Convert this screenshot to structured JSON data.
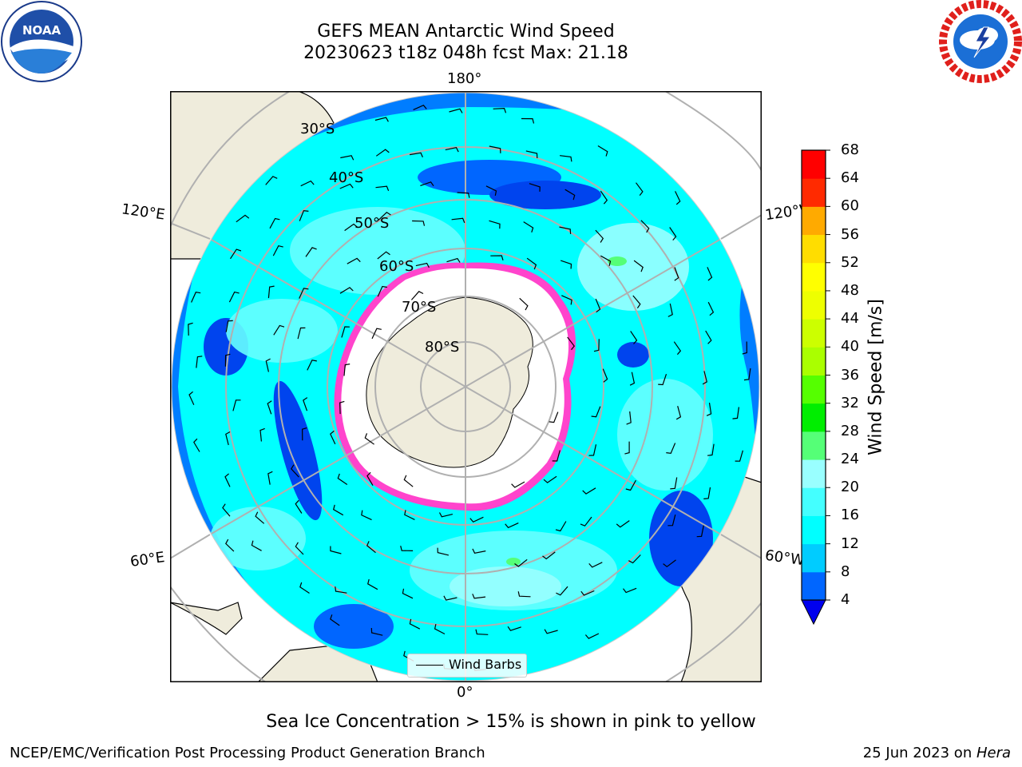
{
  "header": {
    "title_line1": "GEFS MEAN Antarctic Wind Speed",
    "title_line2": "20230623 t18z 048h fcst   Max: 21.18"
  },
  "logos": {
    "left": "noaa-logo",
    "right": "national-weather-service-logo",
    "left_text": "NOAA",
    "left_ring_text": "NATIONAL OCEANIC AND ATMOSPHERIC ADMINISTRATION · U.S. DEPARTMENT OF COMMERCE",
    "right_ring_text": "NATIONAL WEATHER SERVICE"
  },
  "map": {
    "projection": "south-polar-stereographic",
    "longitude_labels": [
      "180°",
      "120°E",
      "120°W",
      "60°E",
      "60°W",
      "0°"
    ],
    "latitude_labels": [
      "30°S",
      "40°S",
      "50°S",
      "60°S",
      "70°S",
      "80°S"
    ],
    "max_wind": "21.18",
    "colors": {
      "ocean_fill": "#00ffff",
      "land": "#efecdc",
      "ice": "#ffffff",
      "sea_ice_edge": "#ff44cc",
      "grid": "#b0b0b0"
    }
  },
  "colorbar": {
    "label": "Wind Speed [m/s]",
    "ticks": [
      "68",
      "64",
      "60",
      "56",
      "52",
      "48",
      "44",
      "40",
      "36",
      "32",
      "28",
      "24",
      "20",
      "16",
      "12",
      "8",
      "4"
    ],
    "colors_bottom_to_top": [
      "#0055ff",
      "#00ccff",
      "#00ffff",
      "#44ffff",
      "#99ffff",
      "#55ff77",
      "#00ee00",
      "#55ff00",
      "#aaff00",
      "#ccff00",
      "#eeff00",
      "#ffff00",
      "#ffdd00",
      "#ffaa00",
      "#ff8800",
      "#ff5500",
      "#ff2200",
      "#ff0000"
    ],
    "under_color": "#0000ee"
  },
  "legend": {
    "label": "Wind Barbs"
  },
  "caption": "Sea Ice Concentration > 15% is shown in pink to yellow",
  "footer": {
    "left": "NCEP/EMC/Verification Post Processing Product Generation Branch",
    "right_date": "25 Jun 2023 on ",
    "right_host": "Hera"
  }
}
